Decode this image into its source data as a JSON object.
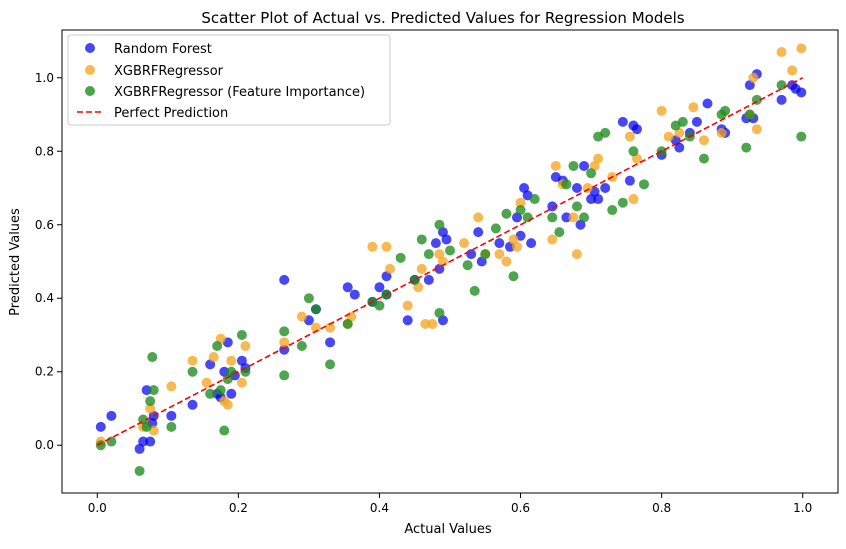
{
  "chart_data": {
    "type": "scatter",
    "title": "Scatter Plot of Actual vs. Predicted Values for Regression Models",
    "xlabel": "Actual Values",
    "ylabel": "Predicted Values",
    "xlim": [
      -0.05,
      1.05
    ],
    "ylim": [
      -0.13,
      1.13
    ],
    "xticks": [
      "0.0",
      "0.2",
      "0.4",
      "0.6",
      "0.8",
      "1.0"
    ],
    "yticks": [
      "0.0",
      "0.2",
      "0.4",
      "0.6",
      "0.8",
      "1.0"
    ],
    "grid": false,
    "legend_position": "top-left",
    "series": [
      {
        "name": "Random Forest",
        "color": "#0000ee",
        "marker": "circle",
        "points": [
          [
            0.005,
            0.05
          ],
          [
            0.02,
            0.08
          ],
          [
            0.06,
            -0.01
          ],
          [
            0.065,
            0.01
          ],
          [
            0.07,
            0.15
          ],
          [
            0.075,
            0.01
          ],
          [
            0.078,
            0.06
          ],
          [
            0.08,
            0.08
          ],
          [
            0.105,
            0.08
          ],
          [
            0.135,
            0.11
          ],
          [
            0.16,
            0.22
          ],
          [
            0.17,
            0.14
          ],
          [
            0.175,
            0.13
          ],
          [
            0.18,
            0.2
          ],
          [
            0.185,
            0.28
          ],
          [
            0.19,
            0.14
          ],
          [
            0.195,
            0.19
          ],
          [
            0.205,
            0.23
          ],
          [
            0.21,
            0.21
          ],
          [
            0.265,
            0.45
          ],
          [
            0.265,
            0.26
          ],
          [
            0.3,
            0.34
          ],
          [
            0.31,
            0.37
          ],
          [
            0.33,
            0.28
          ],
          [
            0.355,
            0.43
          ],
          [
            0.365,
            0.41
          ],
          [
            0.39,
            0.39
          ],
          [
            0.4,
            0.43
          ],
          [
            0.41,
            0.46
          ],
          [
            0.41,
            0.41
          ],
          [
            0.44,
            0.34
          ],
          [
            0.45,
            0.45
          ],
          [
            0.47,
            0.45
          ],
          [
            0.48,
            0.55
          ],
          [
            0.485,
            0.48
          ],
          [
            0.49,
            0.34
          ],
          [
            0.49,
            0.58
          ],
          [
            0.495,
            0.56
          ],
          [
            0.53,
            0.52
          ],
          [
            0.54,
            0.58
          ],
          [
            0.545,
            0.5
          ],
          [
            0.57,
            0.55
          ],
          [
            0.585,
            0.54
          ],
          [
            0.595,
            0.62
          ],
          [
            0.6,
            0.57
          ],
          [
            0.605,
            0.7
          ],
          [
            0.61,
            0.68
          ],
          [
            0.615,
            0.55
          ],
          [
            0.645,
            0.65
          ],
          [
            0.65,
            0.73
          ],
          [
            0.66,
            0.72
          ],
          [
            0.665,
            0.62
          ],
          [
            0.68,
            0.7
          ],
          [
            0.685,
            0.6
          ],
          [
            0.69,
            0.76
          ],
          [
            0.7,
            0.67
          ],
          [
            0.705,
            0.69
          ],
          [
            0.71,
            0.67
          ],
          [
            0.72,
            0.7
          ],
          [
            0.745,
            0.88
          ],
          [
            0.755,
            0.72
          ],
          [
            0.76,
            0.87
          ],
          [
            0.765,
            0.86
          ],
          [
            0.8,
            0.79
          ],
          [
            0.82,
            0.83
          ],
          [
            0.825,
            0.81
          ],
          [
            0.84,
            0.85
          ],
          [
            0.85,
            0.88
          ],
          [
            0.865,
            0.93
          ],
          [
            0.885,
            0.86
          ],
          [
            0.89,
            0.85
          ],
          [
            0.92,
            0.89
          ],
          [
            0.925,
            0.98
          ],
          [
            0.93,
            0.89
          ],
          [
            0.935,
            1.01
          ],
          [
            0.97,
            0.94
          ],
          [
            0.985,
            0.98
          ],
          [
            0.99,
            0.97
          ],
          [
            0.998,
            0.96
          ]
        ]
      },
      {
        "name": "XGBRFRegressor",
        "color": "#f5a623",
        "marker": "circle",
        "points": [
          [
            0.005,
            0.01
          ],
          [
            0.065,
            0.05
          ],
          [
            0.075,
            0.1
          ],
          [
            0.08,
            0.04
          ],
          [
            0.105,
            0.16
          ],
          [
            0.135,
            0.23
          ],
          [
            0.155,
            0.17
          ],
          [
            0.165,
            0.24
          ],
          [
            0.175,
            0.29
          ],
          [
            0.18,
            0.12
          ],
          [
            0.185,
            0.11
          ],
          [
            0.19,
            0.23
          ],
          [
            0.205,
            0.17
          ],
          [
            0.21,
            0.27
          ],
          [
            0.265,
            0.28
          ],
          [
            0.29,
            0.35
          ],
          [
            0.31,
            0.32
          ],
          [
            0.33,
            0.32
          ],
          [
            0.355,
            0.33
          ],
          [
            0.36,
            0.35
          ],
          [
            0.39,
            0.54
          ],
          [
            0.41,
            0.54
          ],
          [
            0.415,
            0.48
          ],
          [
            0.44,
            0.38
          ],
          [
            0.455,
            0.43
          ],
          [
            0.46,
            0.48
          ],
          [
            0.465,
            0.33
          ],
          [
            0.475,
            0.33
          ],
          [
            0.485,
            0.52
          ],
          [
            0.49,
            0.5
          ],
          [
            0.52,
            0.55
          ],
          [
            0.54,
            0.62
          ],
          [
            0.55,
            0.52
          ],
          [
            0.57,
            0.52
          ],
          [
            0.58,
            0.5
          ],
          [
            0.59,
            0.56
          ],
          [
            0.595,
            0.54
          ],
          [
            0.6,
            0.66
          ],
          [
            0.645,
            0.56
          ],
          [
            0.65,
            0.76
          ],
          [
            0.66,
            0.71
          ],
          [
            0.675,
            0.62
          ],
          [
            0.68,
            0.52
          ],
          [
            0.695,
            0.7
          ],
          [
            0.705,
            0.76
          ],
          [
            0.71,
            0.78
          ],
          [
            0.73,
            0.73
          ],
          [
            0.755,
            0.84
          ],
          [
            0.76,
            0.67
          ],
          [
            0.765,
            0.78
          ],
          [
            0.8,
            0.91
          ],
          [
            0.81,
            0.84
          ],
          [
            0.825,
            0.85
          ],
          [
            0.845,
            0.92
          ],
          [
            0.86,
            0.83
          ],
          [
            0.885,
            0.85
          ],
          [
            0.925,
            0.9
          ],
          [
            0.93,
            1.0
          ],
          [
            0.935,
            0.86
          ],
          [
            0.97,
            1.07
          ],
          [
            0.985,
            1.02
          ],
          [
            0.998,
            1.08
          ]
        ]
      },
      {
        "name": "XGBRFRegressor (Feature Importance)",
        "color": "#1e8c1e",
        "marker": "circle",
        "points": [
          [
            0.005,
            0.0
          ],
          [
            0.02,
            0.01
          ],
          [
            0.06,
            -0.07
          ],
          [
            0.065,
            0.07
          ],
          [
            0.07,
            0.05
          ],
          [
            0.075,
            0.12
          ],
          [
            0.078,
            0.24
          ],
          [
            0.08,
            0.15
          ],
          [
            0.105,
            0.05
          ],
          [
            0.135,
            0.2
          ],
          [
            0.16,
            0.14
          ],
          [
            0.17,
            0.27
          ],
          [
            0.175,
            0.15
          ],
          [
            0.18,
            0.04
          ],
          [
            0.185,
            0.18
          ],
          [
            0.19,
            0.2
          ],
          [
            0.205,
            0.3
          ],
          [
            0.21,
            0.2
          ],
          [
            0.265,
            0.31
          ],
          [
            0.265,
            0.19
          ],
          [
            0.29,
            0.27
          ],
          [
            0.3,
            0.4
          ],
          [
            0.31,
            0.37
          ],
          [
            0.33,
            0.22
          ],
          [
            0.355,
            0.33
          ],
          [
            0.39,
            0.39
          ],
          [
            0.4,
            0.38
          ],
          [
            0.41,
            0.41
          ],
          [
            0.43,
            0.51
          ],
          [
            0.45,
            0.45
          ],
          [
            0.46,
            0.56
          ],
          [
            0.47,
            0.52
          ],
          [
            0.485,
            0.36
          ],
          [
            0.485,
            0.6
          ],
          [
            0.5,
            0.53
          ],
          [
            0.525,
            0.49
          ],
          [
            0.535,
            0.42
          ],
          [
            0.55,
            0.52
          ],
          [
            0.565,
            0.59
          ],
          [
            0.58,
            0.63
          ],
          [
            0.59,
            0.46
          ],
          [
            0.6,
            0.64
          ],
          [
            0.61,
            0.62
          ],
          [
            0.62,
            0.67
          ],
          [
            0.645,
            0.62
          ],
          [
            0.655,
            0.58
          ],
          [
            0.665,
            0.71
          ],
          [
            0.675,
            0.76
          ],
          [
            0.68,
            0.65
          ],
          [
            0.69,
            0.62
          ],
          [
            0.7,
            0.74
          ],
          [
            0.71,
            0.84
          ],
          [
            0.72,
            0.85
          ],
          [
            0.73,
            0.64
          ],
          [
            0.745,
            0.66
          ],
          [
            0.76,
            0.8
          ],
          [
            0.775,
            0.71
          ],
          [
            0.8,
            0.8
          ],
          [
            0.82,
            0.87
          ],
          [
            0.83,
            0.88
          ],
          [
            0.84,
            0.84
          ],
          [
            0.86,
            0.78
          ],
          [
            0.885,
            0.9
          ],
          [
            0.89,
            0.91
          ],
          [
            0.92,
            0.81
          ],
          [
            0.925,
            0.9
          ],
          [
            0.935,
            0.94
          ],
          [
            0.97,
            0.98
          ],
          [
            0.998,
            0.84
          ]
        ]
      },
      {
        "name": "Perfect Prediction",
        "color": "#ff0000",
        "line": "dashed",
        "points": [
          [
            0.0,
            0.0
          ],
          [
            1.0,
            1.0
          ]
        ]
      }
    ]
  }
}
